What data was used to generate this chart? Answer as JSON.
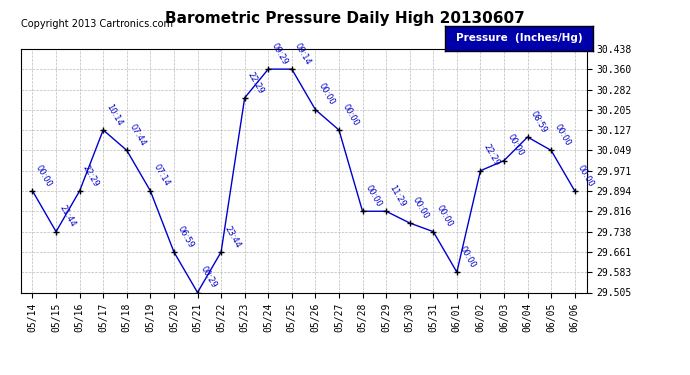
{
  "title": "Barometric Pressure Daily High 20130607",
  "copyright": "Copyright 2013 Cartronics.com",
  "legend_label": "Pressure  (Inches/Hg)",
  "dates": [
    "05/14",
    "05/15",
    "05/16",
    "05/17",
    "05/18",
    "05/19",
    "05/20",
    "05/21",
    "05/22",
    "05/23",
    "05/24",
    "05/25",
    "05/26",
    "05/27",
    "05/28",
    "05/29",
    "05/30",
    "05/31",
    "06/01",
    "06/02",
    "06/03",
    "06/04",
    "06/05",
    "06/06"
  ],
  "values": [
    29.894,
    29.738,
    29.894,
    30.127,
    30.049,
    29.894,
    29.66,
    29.505,
    29.66,
    30.25,
    30.36,
    30.36,
    30.205,
    30.127,
    29.816,
    29.816,
    29.771,
    29.738,
    29.583,
    29.971,
    30.01,
    30.1,
    30.049,
    29.894
  ],
  "time_labels": [
    "00:00",
    "21:44",
    "22:29",
    "10:14",
    "07:44",
    "07:14",
    "06:59",
    "00:29",
    "23:44",
    "22:29",
    "09:29",
    "09:14",
    "00:00",
    "00:00",
    "00:00",
    "11:29",
    "00:00",
    "00:00",
    "00:00",
    "22:29",
    "00:00",
    "08:59",
    "00:00",
    "00:00"
  ],
  "ylim": [
    29.505,
    30.438
  ],
  "yticks": [
    29.505,
    29.583,
    29.661,
    29.738,
    29.816,
    29.894,
    29.971,
    30.049,
    30.127,
    30.205,
    30.282,
    30.36,
    30.438
  ],
  "line_color": "#0000cc",
  "marker_color": "#000000",
  "label_color": "#0000cc",
  "bg_color": "#ffffff",
  "grid_color": "#bbbbbb",
  "title_fontsize": 11,
  "copyright_fontsize": 7,
  "tick_fontsize": 7,
  "legend_bg": "#0000aa",
  "legend_fg": "#ffffff"
}
